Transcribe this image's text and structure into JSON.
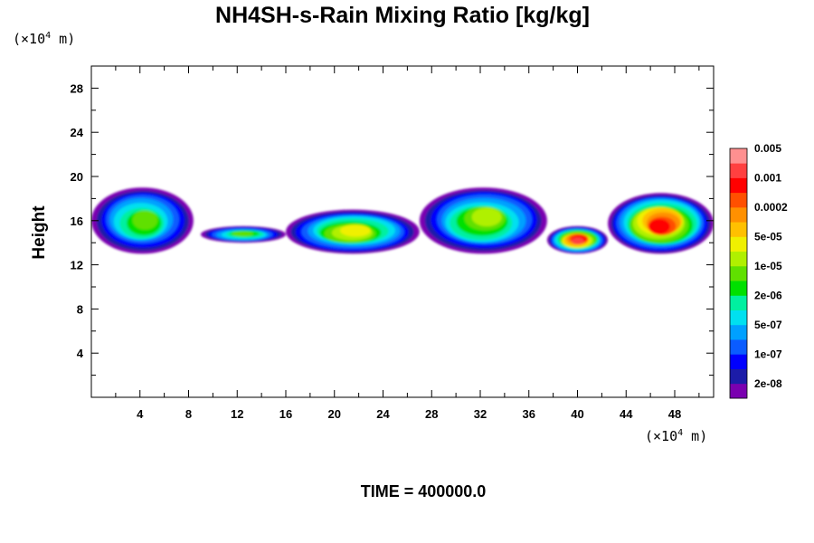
{
  "chart_data": {
    "type": "heatmap",
    "title": "NH4SH-s-Rain Mixing Ratio [kg/kg]",
    "ylabel": "Height",
    "xlabel": "",
    "x_unit_text": "(×10⁴ m)",
    "y_unit_text": "(×10⁴ m)",
    "x_unit_prefix": "(×10",
    "x_unit_exp": "4",
    "x_unit_suffix": " m)",
    "y_unit_prefix": "(×10",
    "y_unit_exp": "4",
    "y_unit_suffix": " m)",
    "xlim": [
      0,
      51.2
    ],
    "ylim": [
      0,
      30
    ],
    "x_ticks": [
      4,
      8,
      12,
      16,
      20,
      24,
      28,
      32,
      36,
      40,
      44,
      48
    ],
    "y_ticks": [
      4,
      8,
      12,
      16,
      20,
      24,
      28
    ],
    "grid": false,
    "colorbar": {
      "labels": [
        "2e-08",
        "1e-07",
        "5e-07",
        "2e-06",
        "1e-05",
        "5e-05",
        "0.0002",
        "0.001",
        "0.005"
      ],
      "colors": [
        "#7a00b0",
        "#1c1ca8",
        "#0000ff",
        "#0a5cff",
        "#00a0ff",
        "#00e0f0",
        "#00f0a0",
        "#00e000",
        "#60e000",
        "#b0f000",
        "#f0f000",
        "#ffc000",
        "#ff9000",
        "#ff5000",
        "#ff0000",
        "#ff4040",
        "#ff9090"
      ]
    },
    "levels": [
      2e-08,
      1e-07,
      5e-07,
      2e-06,
      1e-05,
      5e-05,
      0.0002,
      0.001,
      0.005
    ],
    "field_regions": [
      {
        "x": [
          0,
          8.4
        ],
        "z": [
          13,
          19
        ],
        "peak_level": 8
      },
      {
        "x": [
          9,
          16
        ],
        "z": [
          14,
          15.5
        ],
        "peak_level": 8
      },
      {
        "x": [
          16,
          27
        ],
        "z": [
          13,
          17
        ],
        "peak_level": 10
      },
      {
        "x": [
          27,
          37.5
        ],
        "z": [
          13,
          19
        ],
        "peak_level": 9
      },
      {
        "x": [
          37.5,
          42.5
        ],
        "z": [
          13,
          15.5
        ],
        "peak_level": 15
      },
      {
        "x": [
          42.5,
          51.2
        ],
        "z": [
          13,
          18.5
        ],
        "peak_level": 14
      }
    ]
  },
  "footer": {
    "time_label": "TIME = 400000.0"
  }
}
